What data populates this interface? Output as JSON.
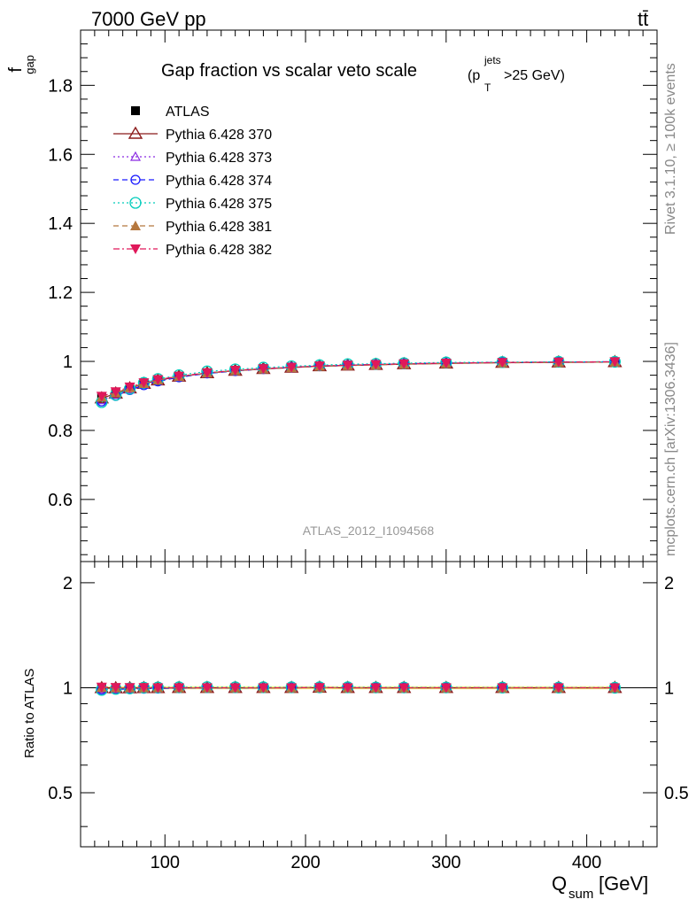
{
  "header": {
    "energy_label": "7000 GeV pp",
    "process_label": "tt̄",
    "side_label_top": "Rivet 3.1.10, ≥ 100k events",
    "side_label_bottom": "mcplots.cern.ch [arXiv:1306.3436]",
    "watermark": "ATLAS_2012_I1094568"
  },
  "chart_data": {
    "type": "scatter",
    "title_main": "Gap fraction vs scalar veto scale",
    "title_cut": "(p",
    "title_cut_sup": "jets",
    "title_cut_sub": "T",
    "title_cut_tail": ">25 GeV)",
    "ylabel_main": "f",
    "ylabel_main_sub": "gap",
    "ylabel_ratio": "Ratio to ATLAS",
    "xlabel": "Q",
    "xlabel_sub": "sum",
    "xlabel_unit": " [GeV]",
    "xlim": [
      40,
      450
    ],
    "ylim_main": [
      0.42,
      1.96
    ],
    "ylim_ratio": [
      0.35,
      2.3
    ],
    "x_ticks": [
      100,
      200,
      300,
      400
    ],
    "x_tick_labels": [
      "100",
      "200",
      "300",
      "400"
    ],
    "y_ticks_main": [
      0.6,
      0.8,
      1.0,
      1.2,
      1.4,
      1.6,
      1.8
    ],
    "y_tick_labels_main": [
      "0.6",
      "0.8",
      "1",
      "1.2",
      "1.4",
      "1.6",
      "1.8"
    ],
    "y_ticks_ratio": [
      0.5,
      1,
      2
    ],
    "y_tick_labels_ratio": [
      "0.5",
      "1",
      "2"
    ],
    "legend_position": "top-left",
    "x": [
      55,
      65,
      75,
      85,
      95,
      110,
      130,
      150,
      170,
      190,
      210,
      230,
      250,
      270,
      300,
      340,
      380,
      420
    ],
    "series": [
      {
        "name": "ATLAS",
        "color": "#000000",
        "marker": "square-filled",
        "line": "none",
        "values": [
          0.895,
          0.91,
          0.925,
          0.937,
          0.947,
          0.957,
          0.967,
          0.974,
          0.979,
          0.983,
          0.986,
          0.989,
          0.991,
          0.993,
          0.995,
          0.997,
          0.998,
          0.999
        ]
      },
      {
        "name": "Pythia 6.428 370",
        "color": "#8b1a1a",
        "marker": "triangle-open",
        "line": "solid",
        "values": [
          0.893,
          0.907,
          0.922,
          0.935,
          0.945,
          0.956,
          0.966,
          0.973,
          0.978,
          0.982,
          0.986,
          0.988,
          0.99,
          0.992,
          0.994,
          0.996,
          0.997,
          0.998
        ]
      },
      {
        "name": "Pythia 6.428 373",
        "color": "#8a2be2",
        "marker": "triangle-open-small",
        "line": "dotted",
        "values": [
          0.888,
          0.903,
          0.919,
          0.933,
          0.944,
          0.955,
          0.966,
          0.973,
          0.978,
          0.983,
          0.987,
          0.989,
          0.991,
          0.993,
          0.995,
          0.997,
          0.998,
          0.999
        ]
      },
      {
        "name": "Pythia 6.428 374",
        "color": "#1a1aff",
        "marker": "circle-open",
        "line": "dashed",
        "values": [
          0.884,
          0.9,
          0.917,
          0.931,
          0.942,
          0.954,
          0.965,
          0.972,
          0.978,
          0.983,
          0.986,
          0.989,
          0.991,
          0.993,
          0.995,
          0.997,
          0.998,
          0.999
        ]
      },
      {
        "name": "Pythia 6.428 375",
        "color": "#00ccbb",
        "marker": "circle-open-large",
        "line": "dotted",
        "values": [
          0.882,
          0.903,
          0.921,
          0.938,
          0.949,
          0.96,
          0.971,
          0.977,
          0.982,
          0.986,
          0.989,
          0.992,
          0.993,
          0.995,
          0.997,
          0.998,
          0.999,
          0.999
        ]
      },
      {
        "name": "Pythia 6.428 381",
        "color": "#b5773e",
        "marker": "triangle-filled",
        "line": "dashed",
        "values": [
          0.896,
          0.909,
          0.924,
          0.936,
          0.946,
          0.956,
          0.966,
          0.973,
          0.978,
          0.982,
          0.986,
          0.988,
          0.99,
          0.992,
          0.994,
          0.996,
          0.997,
          0.998
        ]
      },
      {
        "name": "Pythia 6.428 382",
        "color": "#e0185a",
        "marker": "triangle-down-filled",
        "line": "dashdot",
        "values": [
          0.899,
          0.912,
          0.926,
          0.938,
          0.947,
          0.957,
          0.967,
          0.974,
          0.979,
          0.983,
          0.987,
          0.989,
          0.991,
          0.993,
          0.995,
          0.997,
          0.998,
          0.999
        ]
      }
    ]
  }
}
